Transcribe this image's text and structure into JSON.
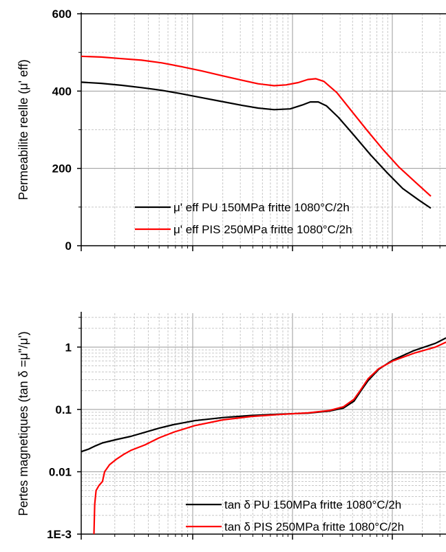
{
  "chart_data": [
    {
      "type": "line",
      "ylabel": "Permeabilite reelle (μ' eff)",
      "y_scale": "linear",
      "ylim": [
        0,
        600
      ],
      "yticks": [
        "0",
        "200",
        "400",
        "600"
      ],
      "x_scale": "log",
      "grid": true,
      "legend_placement": "bottom-right",
      "series": [
        {
          "name": "μ' eff PU 150MPa fritte 1080°C/2h",
          "color": "#000000",
          "points": [
            [
              0,
              423
            ],
            [
              25,
              420
            ],
            [
              50,
              415
            ],
            [
              75,
              409
            ],
            [
              100,
              402
            ],
            [
              125,
              393
            ],
            [
              150,
              383
            ],
            [
              175,
              373
            ],
            [
              200,
              363
            ],
            [
              220,
              356
            ],
            [
              240,
              352
            ],
            [
              260,
              354
            ],
            [
              275,
              364
            ],
            [
              285,
              372
            ],
            [
              295,
              372
            ],
            [
              305,
              362
            ],
            [
              320,
              332
            ],
            [
              340,
              284
            ],
            [
              360,
              235
            ],
            [
              380,
              190
            ],
            [
              400,
              148
            ],
            [
              420,
              118
            ],
            [
              435,
              97
            ]
          ]
        },
        {
          "name": "μ' eff PIS 250MPa fritte 1080°C/2h",
          "color": "#ff0000",
          "points": [
            [
              0,
              490
            ],
            [
              25,
              488
            ],
            [
              50,
              484
            ],
            [
              75,
              480
            ],
            [
              100,
              473
            ],
            [
              125,
              463
            ],
            [
              150,
              452
            ],
            [
              175,
              440
            ],
            [
              200,
              428
            ],
            [
              220,
              419
            ],
            [
              240,
              414
            ],
            [
              255,
              416
            ],
            [
              270,
              422
            ],
            [
              282,
              430
            ],
            [
              292,
              432
            ],
            [
              302,
              425
            ],
            [
              318,
              396
            ],
            [
              335,
              352
            ],
            [
              355,
              300
            ],
            [
              375,
              250
            ],
            [
              395,
              204
            ],
            [
              415,
              166
            ],
            [
              435,
              128
            ]
          ]
        }
      ]
    },
    {
      "type": "line",
      "ylabel": "Pertes magnetiques (tan δ =μ\"/μ')",
      "y_scale": "log",
      "ylim": [
        0.001,
        3.5
      ],
      "yticks": [
        "1E-3",
        "0.01",
        "0.1",
        "1"
      ],
      "x_scale": "log",
      "grid": true,
      "legend_placement": "bottom-right",
      "series": [
        {
          "name": "tan δ PU 150MPa fritte 1080°C/2h",
          "color": "#000000",
          "points": [
            [
              0,
              0.021
            ],
            [
              10,
              0.023
            ],
            [
              20,
              0.026
            ],
            [
              30,
              0.029
            ],
            [
              50,
              0.033
            ],
            [
              70,
              0.037
            ],
            [
              90,
              0.043
            ],
            [
              110,
              0.05
            ],
            [
              130,
              0.057
            ],
            [
              160,
              0.066
            ],
            [
              200,
              0.074
            ],
            [
              240,
              0.08
            ],
            [
              280,
              0.084
            ],
            [
              320,
              0.087
            ],
            [
              350,
              0.094
            ],
            [
              370,
              0.105
            ],
            [
              385,
              0.135
            ],
            [
              395,
              0.2
            ],
            [
              405,
              0.29
            ],
            [
              420,
              0.44
            ],
            [
              440,
              0.62
            ],
            [
              470,
              0.88
            ],
            [
              500,
              1.15
            ],
            [
              515,
              1.4
            ]
          ]
        },
        {
          "name": "tan δ PIS 250MPa fritte 1080°C/2h",
          "color": "#ff0000",
          "points": [
            [
              18,
              0.001
            ],
            [
              19,
              0.003
            ],
            [
              21,
              0.005
            ],
            [
              25,
              0.006
            ],
            [
              30,
              0.007
            ],
            [
              33,
              0.01
            ],
            [
              40,
              0.013
            ],
            [
              50,
              0.016
            ],
            [
              60,
              0.019
            ],
            [
              70,
              0.022
            ],
            [
              90,
              0.027
            ],
            [
              110,
              0.035
            ],
            [
              130,
              0.043
            ],
            [
              160,
              0.055
            ],
            [
              200,
              0.068
            ],
            [
              240,
              0.077
            ],
            [
              280,
              0.083
            ],
            [
              320,
              0.088
            ],
            [
              350,
              0.096
            ],
            [
              370,
              0.11
            ],
            [
              385,
              0.145
            ],
            [
              395,
              0.21
            ],
            [
              405,
              0.31
            ],
            [
              420,
              0.45
            ],
            [
              440,
              0.6
            ],
            [
              470,
              0.8
            ],
            [
              500,
              1.0
            ],
            [
              515,
              1.2
            ]
          ]
        }
      ]
    }
  ]
}
